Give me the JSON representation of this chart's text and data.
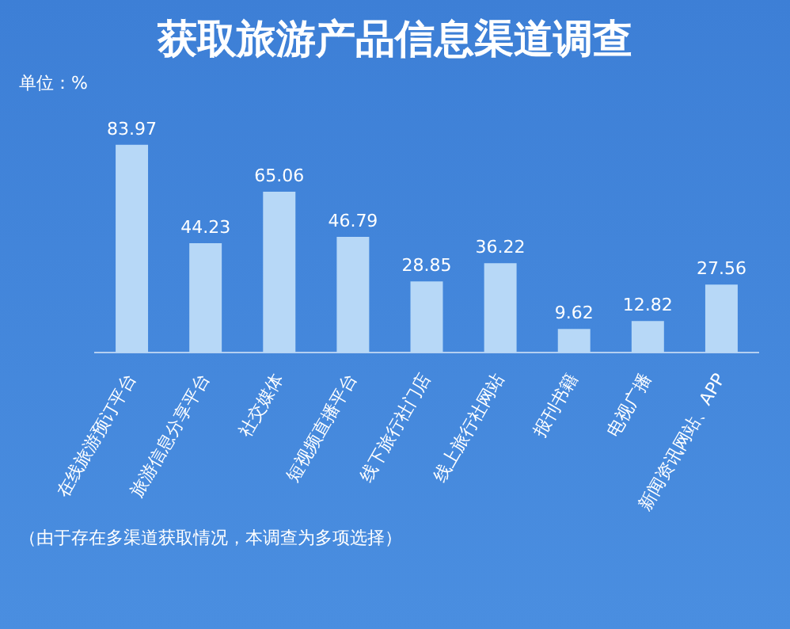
{
  "chart_data": {
    "type": "bar",
    "title": "获取旅游产品信息渠道调查",
    "categories": [
      "在线旅游预订平台",
      "旅游信息分享平台",
      "社交媒体",
      "短视频直播平台",
      "线下旅行社门店",
      "线上旅行社网站",
      "报刊书籍",
      "电视广播",
      "新闻资讯网站、APP"
    ],
    "values": [
      83.97,
      44.23,
      65.06,
      46.79,
      28.85,
      36.22,
      9.62,
      12.82,
      27.56
    ],
    "color": "#b7d8f7",
    "data_labels": true,
    "annotations": [
      "单位：%",
      "（由于存在多渠道获取情况，本调查为多项选择）"
    ]
  }
}
